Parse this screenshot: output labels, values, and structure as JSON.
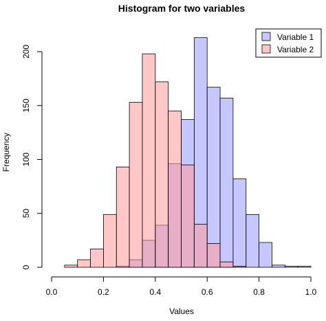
{
  "chart_data": {
    "type": "bar",
    "title": "Histogram for two variables",
    "xlabel": "Values",
    "ylabel": "Frequency",
    "xlim": [
      0,
      1
    ],
    "ylim": [
      0,
      200
    ],
    "xticks": [
      "0.0",
      "0.2",
      "0.4",
      "0.6",
      "0.8",
      "1.0"
    ],
    "yticks": [
      "0",
      "50",
      "100",
      "150",
      "200"
    ],
    "bins": {
      "left_edges": [
        0.05,
        0.1,
        0.15,
        0.2,
        0.25,
        0.3,
        0.35,
        0.4,
        0.45,
        0.5,
        0.55,
        0.6,
        0.65,
        0.7,
        0.75,
        0.8,
        0.85,
        0.9,
        0.95
      ],
      "width": 0.05
    },
    "series": [
      {
        "name": "Variable 1",
        "color": "#9999ff",
        "fill_opacity": 0.55,
        "values": [
          0,
          0,
          0,
          0,
          1,
          7,
          25,
          39,
          96,
          137,
          213,
          167,
          157,
          82,
          49,
          23,
          2,
          1,
          1
        ]
      },
      {
        "name": "Variable 2",
        "color": "#ff9999",
        "fill_opacity": 0.55,
        "values": [
          2,
          7,
          17,
          49,
          93,
          153,
          198,
          172,
          145,
          95,
          40,
          22,
          5,
          1,
          0,
          0,
          0,
          0,
          0
        ]
      }
    ],
    "legend": {
      "position": "top-right"
    },
    "grid": false
  }
}
